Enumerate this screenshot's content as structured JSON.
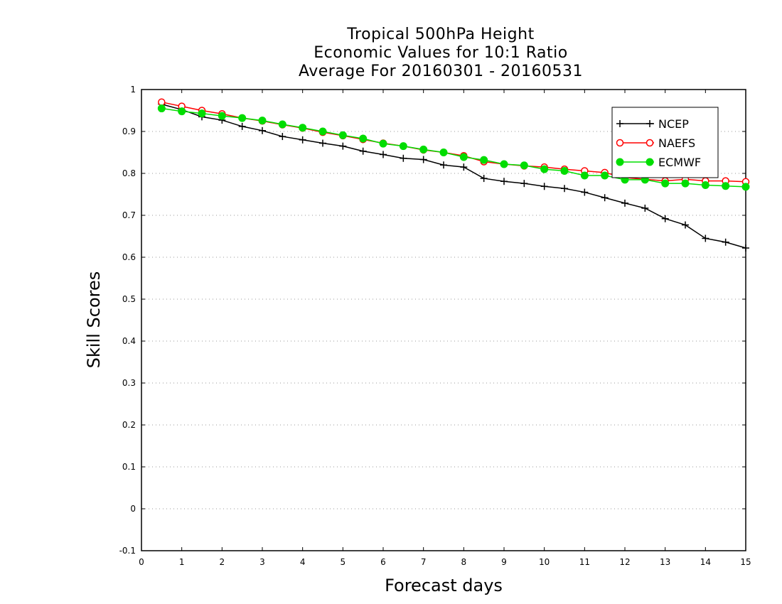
{
  "chart_data": {
    "type": "line",
    "title": [
      "Tropical 500hPa Height",
      "Economic Values for 10:1 Ratio",
      "Average For 20160301 - 20160531"
    ],
    "xlabel": "Forecast days",
    "ylabel": "Skill Scores",
    "xlim": [
      0,
      15
    ],
    "ylim": [
      -0.1,
      1
    ],
    "xticks": [
      0,
      1,
      2,
      3,
      4,
      5,
      6,
      7,
      8,
      9,
      10,
      11,
      12,
      13,
      14,
      15
    ],
    "yticks": [
      -0.1,
      0,
      0.1,
      0.2,
      0.3,
      0.4,
      0.5,
      0.6,
      0.7,
      0.8,
      0.9,
      1
    ],
    "ytick_labels": [
      "-0.1",
      "0",
      "0.1",
      "0.2",
      "0.3",
      "0.4",
      "0.5",
      "0.6",
      "0.7",
      "0.8",
      "0.9",
      "1"
    ],
    "grid": "horizontal dotted",
    "legend_position": "top-right",
    "x": [
      0.5,
      1,
      1.5,
      2,
      2.5,
      3,
      3.5,
      4,
      4.5,
      5,
      5.5,
      6,
      6.5,
      7,
      7.5,
      8,
      8.5,
      9,
      9.5,
      10,
      10.5,
      11,
      11.5,
      12,
      12.5,
      13,
      13.5,
      14,
      14.5,
      15
    ],
    "series": [
      {
        "name": "NCEP",
        "color": "#000000",
        "marker": "plus",
        "values": [
          0.965,
          0.952,
          0.935,
          0.927,
          0.912,
          0.902,
          0.888,
          0.88,
          0.872,
          0.865,
          0.853,
          0.845,
          0.836,
          0.833,
          0.82,
          0.815,
          0.788,
          0.781,
          0.776,
          0.769,
          0.764,
          0.755,
          0.742,
          0.729,
          0.717,
          0.692,
          0.677,
          0.645,
          0.636,
          0.622
        ]
      },
      {
        "name": "NAEFS",
        "color": "#ff0000",
        "marker": "open-circle",
        "values": [
          0.97,
          0.96,
          0.95,
          0.942,
          0.932,
          0.925,
          0.916,
          0.908,
          0.898,
          0.89,
          0.881,
          0.872,
          0.865,
          0.856,
          0.85,
          0.842,
          0.828,
          0.822,
          0.818,
          0.815,
          0.81,
          0.806,
          0.802,
          0.79,
          0.786,
          0.782,
          0.786,
          0.782,
          0.782,
          0.78
        ]
      },
      {
        "name": "ECMWF",
        "color": "#00dd00",
        "marker": "filled-circle",
        "values": [
          0.955,
          0.948,
          0.943,
          0.937,
          0.932,
          0.926,
          0.917,
          0.909,
          0.9,
          0.891,
          0.883,
          0.871,
          0.865,
          0.857,
          0.85,
          0.839,
          0.832,
          0.822,
          0.819,
          0.81,
          0.806,
          0.795,
          0.795,
          0.785,
          0.785,
          0.776,
          0.776,
          0.772,
          0.77,
          0.768
        ]
      }
    ]
  }
}
